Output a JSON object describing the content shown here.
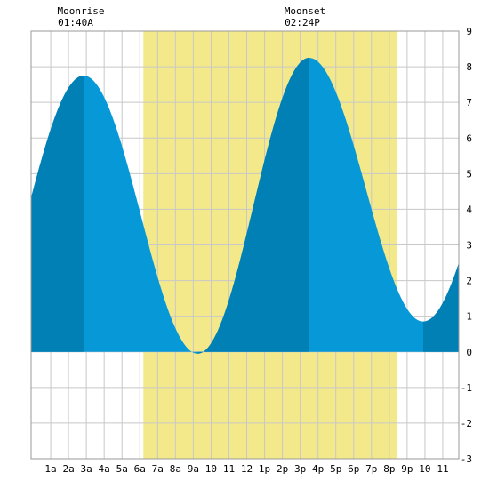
{
  "chart_data": {
    "type": "area",
    "moonrise": {
      "label": "Moonrise",
      "time": "01:40A",
      "hour": 1.67
    },
    "moonset": {
      "label": "Moonset",
      "time": "02:24P",
      "hour": 14.4
    },
    "x_tick_labels": [
      "1a",
      "2a",
      "3a",
      "4a",
      "5a",
      "6a",
      "7a",
      "8a",
      "9a",
      "10",
      "11",
      "12",
      "1p",
      "2p",
      "3p",
      "4p",
      "5p",
      "6p",
      "7p",
      "8p",
      "9p",
      "10",
      "11"
    ],
    "x_tick_hours": [
      1,
      2,
      3,
      4,
      5,
      6,
      7,
      8,
      9,
      10,
      11,
      12,
      13,
      14,
      15,
      16,
      17,
      18,
      19,
      20,
      21,
      22,
      23
    ],
    "xlim": [
      -0.1,
      23.9
    ],
    "ylim": [
      -3,
      9
    ],
    "y_ticks": [
      -3,
      -2,
      -1,
      0,
      1,
      2,
      3,
      4,
      5,
      6,
      7,
      8,
      9
    ],
    "grid": true,
    "daylight": {
      "start_hour": 6.2,
      "end_hour": 20.45
    },
    "tide_extremes": [
      {
        "hour": 2.85,
        "height": 7.75
      },
      {
        "hour": 9.25,
        "height": -0.05
      },
      {
        "hour": 15.5,
        "height": 8.25
      },
      {
        "hour": 21.9,
        "height": 0.85
      }
    ],
    "start_height": 4.8,
    "end_height": 2.8,
    "dark_bands": [
      [
        -0.1,
        2.85
      ],
      [
        9.25,
        15.5
      ],
      [
        21.9,
        23.9
      ]
    ],
    "colors": {
      "daylight": "#f3e98a",
      "tide_light": "#0798d8",
      "tide_dark": "#0180b5",
      "grid": "#c8c8c8",
      "frame": "#9a9a9a"
    }
  }
}
